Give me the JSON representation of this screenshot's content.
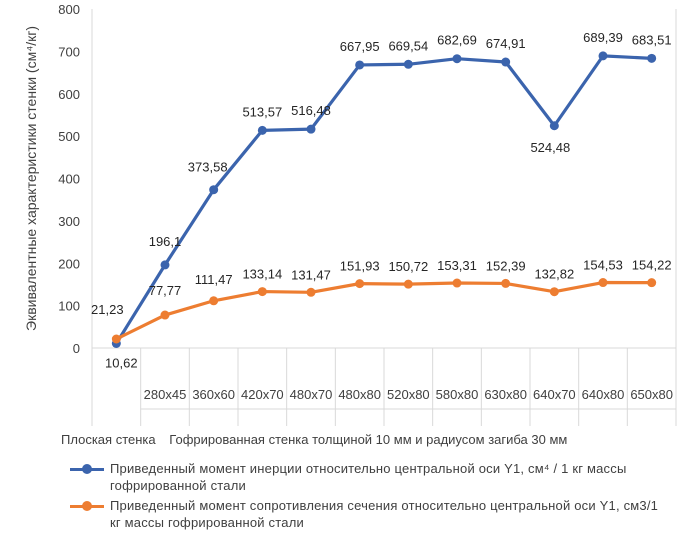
{
  "chart_data": {
    "type": "line",
    "ylabel": "Эквивалентные характеристики стенки (см⁴/кг)",
    "ylim": [
      0,
      800
    ],
    "yticks": [
      0,
      100,
      200,
      300,
      400,
      500,
      600,
      700,
      800
    ],
    "categories": [
      "",
      "280x45",
      "360x60",
      "420x70",
      "480x70",
      "480x80",
      "520x80",
      "580x80",
      "630x80",
      "640x70",
      "640x80",
      "650x80"
    ],
    "group_labels": [
      "Плоская стенка",
      "Гофрированная стенка толщиной 10 мм и радиусом загиба 30 мм"
    ],
    "grid": "vertical-category-separators",
    "legend_position": "bottom",
    "series": [
      {
        "name": "Приведенный момент инерции относительно центральной оси Y1, см⁴ / 1 кг массы гофрированной стали",
        "color": "#3B64AD",
        "values": [
          10.62,
          196.1,
          373.58,
          513.57,
          516.48,
          667.95,
          669.54,
          682.69,
          674.91,
          524.48,
          689.39,
          683.51
        ],
        "labels": [
          "10,62",
          "196,1",
          "373,58",
          "513,57",
          "516,48",
          "667,95",
          "669,54",
          "682,69",
          "674,91",
          "524,48",
          "689,39",
          "683,51"
        ]
      },
      {
        "name": "Приведенный момент сопротивления сечения относительно центральной оси Y1, см3/1 кг массы гофрированной стали",
        "color": "#ED7D31",
        "values": [
          21.23,
          77.77,
          111.47,
          133.14,
          131.47,
          151.93,
          150.72,
          153.31,
          152.39,
          132.82,
          154.53,
          154.22
        ],
        "labels": [
          "21,23",
          "77,77",
          "111,47",
          "133,14",
          "131,47",
          "151,93",
          "150,72",
          "153,31",
          "152,39",
          "132,82",
          "154,53",
          "154,22"
        ]
      }
    ]
  }
}
